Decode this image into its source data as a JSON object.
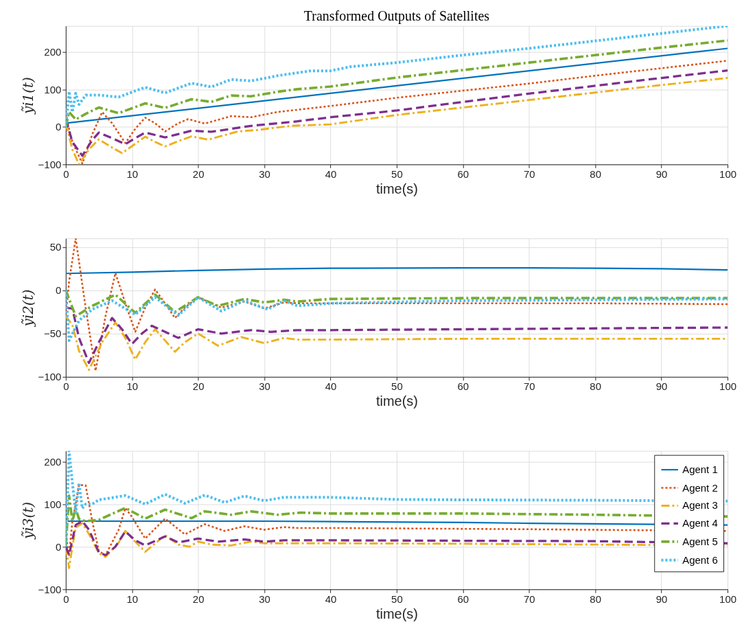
{
  "chart_data": [
    {
      "type": "line",
      "title": "Transformed Outputs of Satellites",
      "xlabel": "time(s)",
      "ylabel": "ỹi1(t)",
      "xlim": [
        0,
        100
      ],
      "xticks": [
        0,
        10,
        20,
        30,
        40,
        50,
        60,
        70,
        80,
        90,
        100
      ],
      "ylim": [
        -100,
        270
      ],
      "yticks": [
        -100,
        0,
        100,
        200
      ],
      "grid": true,
      "series": [
        {
          "color": "#0072bd",
          "line_style": "solid",
          "x": [
            0,
            50,
            100
          ],
          "values": [
            10,
            110,
            210
          ]
        },
        {
          "color": "#d95319",
          "line_style": "dotted",
          "x": [
            0,
            1,
            2.5,
            4,
            5.5,
            7,
            9,
            10.5,
            12,
            13.5,
            15,
            17,
            18.5,
            21,
            25,
            28,
            32,
            35,
            40,
            50,
            60,
            70,
            80,
            90,
            100
          ],
          "values": [
            30,
            -40,
            -98,
            -20,
            40,
            10,
            -43,
            -5,
            25,
            10,
            -12,
            10,
            21,
            9,
            29,
            26,
            40,
            46,
            56,
            78,
            97,
            116,
            137,
            157,
            177
          ]
        },
        {
          "color": "#edb120",
          "line_style": "dashdot",
          "x": [
            0,
            1,
            2,
            3.5,
            5,
            7,
            8.5,
            10.5,
            12,
            13.5,
            15,
            17,
            19,
            21.5,
            26,
            29,
            34,
            40,
            50,
            60,
            70,
            80,
            90,
            100
          ],
          "values": [
            10,
            -60,
            -100,
            -60,
            -33,
            -55,
            -70,
            -45,
            -26,
            -40,
            -52,
            -38,
            -25,
            -34,
            -12,
            -8,
            3,
            7,
            32,
            52,
            72,
            92,
            112,
            131
          ]
        },
        {
          "color": "#7e2f8e",
          "line_style": "dashed",
          "x": [
            0,
            1,
            2.5,
            4,
            5,
            7,
            9,
            10.5,
            12,
            15,
            19,
            22,
            28,
            35,
            40,
            50,
            60,
            70,
            80,
            90,
            100
          ],
          "values": [
            20,
            -40,
            -77,
            -35,
            -15,
            -30,
            -46,
            -30,
            -15,
            -28,
            -10,
            -13,
            3,
            15,
            26,
            44,
            67,
            89,
            110,
            131,
            151
          ]
        },
        {
          "color": "#77ac30",
          "line_style": "dashdot",
          "x": [
            0,
            0.5,
            1.5,
            3,
            5,
            8,
            12,
            15,
            19,
            22,
            25,
            28,
            32,
            35,
            40,
            50,
            60,
            70,
            80,
            90,
            100
          ],
          "values": [
            0,
            40,
            20,
            35,
            52,
            37,
            63,
            51,
            74,
            67,
            84,
            82,
            94,
            101,
            108,
            132,
            152,
            172,
            192,
            212,
            231
          ]
        },
        {
          "color": "#4dbeee",
          "line_style": "dotted",
          "x": [
            0,
            0.5,
            1,
            1.5,
            2,
            3,
            5,
            8,
            12,
            15,
            19,
            22,
            25,
            28,
            32,
            37,
            40,
            43,
            50,
            60,
            70,
            80,
            90,
            100
          ],
          "values": [
            0,
            95,
            40,
            90,
            60,
            85,
            85,
            80,
            106,
            91,
            117,
            107,
            127,
            123,
            137,
            150,
            150,
            161,
            172,
            192,
            210,
            230,
            250,
            270
          ]
        }
      ]
    },
    {
      "type": "line",
      "xlabel": "time(s)",
      "ylabel": "ỹi2(t)",
      "xlim": [
        0,
        100
      ],
      "xticks": [
        0,
        10,
        20,
        30,
        40,
        50,
        60,
        70,
        80,
        90,
        100
      ],
      "ylim": [
        -100,
        60
      ],
      "yticks": [
        -100,
        -50,
        0,
        50
      ],
      "grid": true,
      "series": [
        {
          "color": "#0072bd",
          "line_style": "solid",
          "x": [
            0,
            10,
            20,
            30,
            40,
            60,
            70,
            80,
            90,
            100
          ],
          "values": [
            19.5,
            21,
            23,
            24.5,
            25.5,
            26,
            26,
            25.5,
            25,
            23.5
          ]
        },
        {
          "color": "#d95319",
          "line_style": "dotted",
          "x": [
            0,
            0.5,
            1.5,
            3,
            4.5,
            6,
            7.5,
            9,
            10.5,
            12,
            13.5,
            15,
            16.5,
            18,
            20,
            23.5,
            27,
            30,
            33,
            35,
            40,
            60,
            80,
            100
          ],
          "values": [
            -30,
            10,
            60,
            -20,
            -93,
            -30,
            20,
            -15,
            -48,
            -20,
            1,
            -15,
            -32,
            -20,
            -8,
            -20,
            -13,
            -21,
            -14,
            -15,
            -15,
            -15,
            -15,
            -16
          ]
        },
        {
          "color": "#edb120",
          "line_style": "dashdot",
          "x": [
            0,
            1,
            2,
            3.5,
            5.5,
            7.5,
            9,
            10.5,
            12,
            13.5,
            15,
            16.5,
            18,
            20,
            23,
            26.5,
            30,
            33,
            35,
            40,
            60,
            100
          ],
          "values": [
            -30,
            -40,
            -70,
            -92,
            -60,
            -37,
            -55,
            -80,
            -60,
            -45,
            -58,
            -71,
            -60,
            -50,
            -64,
            -54,
            -61,
            -55,
            -57,
            -57,
            -56,
            -56
          ]
        },
        {
          "color": "#7e2f8e",
          "line_style": "dashed",
          "x": [
            0,
            1,
            2,
            3.5,
            5,
            7,
            8.5,
            10,
            11.5,
            13,
            15,
            17,
            20,
            23.5,
            28,
            31,
            35,
            40,
            60,
            80,
            100
          ],
          "values": [
            -20,
            -21,
            -55,
            -84,
            -60,
            -32,
            -45,
            -62,
            -50,
            -41,
            -48,
            -55,
            -45,
            -50,
            -46,
            -48,
            -46,
            -46,
            -45,
            -44,
            -43
          ]
        },
        {
          "color": "#77ac30",
          "line_style": "dashdot",
          "x": [
            0,
            1.5,
            4,
            7.5,
            10.5,
            13.5,
            16.5,
            20,
            23,
            27,
            30,
            33,
            35,
            40,
            60,
            80,
            100
          ],
          "values": [
            0,
            -30,
            -18,
            -5,
            -26,
            -5,
            -25,
            -8,
            -18,
            -10,
            -14,
            -11,
            -13,
            -10,
            -9,
            -9,
            -9
          ]
        },
        {
          "color": "#4dbeee",
          "line_style": "dotted",
          "x": [
            0,
            0.5,
            2,
            4,
            7,
            10.5,
            13.5,
            17,
            20,
            23.5,
            27,
            30.5,
            33,
            35,
            40,
            60,
            80,
            100
          ],
          "values": [
            0,
            -58,
            -35,
            -22,
            -12,
            -28,
            -8,
            -29,
            -8,
            -24,
            -12,
            -22,
            -12,
            -18,
            -15,
            -12,
            -11,
            -10
          ]
        }
      ]
    },
    {
      "type": "line",
      "xlabel": "time(s)",
      "ylabel": "ỹi3(t)",
      "xlim": [
        0,
        100
      ],
      "xticks": [
        0,
        10,
        20,
        30,
        40,
        50,
        60,
        70,
        80,
        90,
        100
      ],
      "ylim": [
        -100,
        225
      ],
      "yticks": [
        -100,
        0,
        100,
        200
      ],
      "grid": true,
      "legend": "top right",
      "series": [
        {
          "name": "Agent 1",
          "color": "#0072bd",
          "line_style": "solid",
          "x": [
            0,
            0.5,
            30,
            40,
            60,
            70,
            100
          ],
          "values": [
            60,
            60,
            60,
            59,
            57,
            55,
            51
          ]
        },
        {
          "name": "Agent 2",
          "color": "#d95319",
          "line_style": "dotted",
          "x": [
            0,
            0.5,
            1,
            1.5,
            2,
            3,
            4,
            5,
            6,
            8,
            9,
            10,
            12,
            15,
            18,
            21,
            24,
            27,
            30,
            33,
            35,
            40,
            70,
            100
          ],
          "values": [
            30,
            -20,
            60,
            100,
            145,
            144,
            60,
            -10,
            -20,
            40,
            91,
            70,
            19,
            66,
            29,
            53,
            37,
            48,
            40,
            46,
            44,
            44,
            41,
            37
          ]
        },
        {
          "name": "Agent 3",
          "color": "#edb120",
          "line_style": "dashdot",
          "x": [
            0,
            0.5,
            1,
            1.5,
            2.5,
            3.5,
            5,
            6,
            8,
            9,
            10,
            12,
            15,
            17,
            18.7,
            20,
            22,
            25,
            28,
            30,
            33,
            40,
            60,
            80,
            100
          ],
          "values": [
            0,
            -50,
            0,
            45,
            55,
            30,
            -15,
            -24,
            10,
            37,
            20,
            -12,
            27,
            5,
            0,
            12,
            5,
            3,
            12,
            8,
            8,
            8,
            7,
            5,
            3
          ]
        },
        {
          "name": "Agent 4",
          "color": "#7e2f8e",
          "line_style": "dashed",
          "x": [
            0,
            0.5,
            1.5,
            2.5,
            3.5,
            5,
            6,
            7.5,
            9,
            10.5,
            12,
            15,
            17,
            20,
            23,
            27,
            30,
            33,
            40,
            60,
            80,
            100
          ],
          "values": [
            0,
            -19,
            51,
            60,
            40,
            -13,
            -20,
            0,
            36,
            15,
            3,
            24,
            10,
            19,
            12,
            17,
            12,
            15,
            15,
            14,
            13,
            8
          ]
        },
        {
          "name": "Agent 5",
          "color": "#77ac30",
          "line_style": "dashdot",
          "x": [
            0,
            0.5,
            1,
            1.5,
            2,
            3,
            5,
            9,
            12,
            15,
            19,
            21,
            25,
            28,
            32,
            35.5,
            40,
            60,
            80,
            100
          ],
          "values": [
            0,
            120,
            60,
            90,
            65,
            60,
            63,
            91,
            66,
            87,
            67,
            83,
            75,
            83,
            75,
            80,
            78,
            78,
            75,
            71
          ]
        },
        {
          "name": "Agent 6",
          "color": "#4dbeee",
          "line_style": "dotted",
          "x": [
            0,
            0.5,
            1,
            1.5,
            2,
            2.5,
            3,
            4,
            5,
            9,
            12,
            15,
            18,
            21,
            24,
            27,
            30,
            33,
            40,
            50,
            60,
            80,
            100
          ],
          "values": [
            0,
            225,
            150,
            80,
            150,
            90,
            100,
            100,
            110,
            120,
            100,
            123,
            102,
            121,
            104,
            119,
            108,
            116,
            116,
            111,
            110,
            109,
            107
          ]
        }
      ]
    }
  ]
}
